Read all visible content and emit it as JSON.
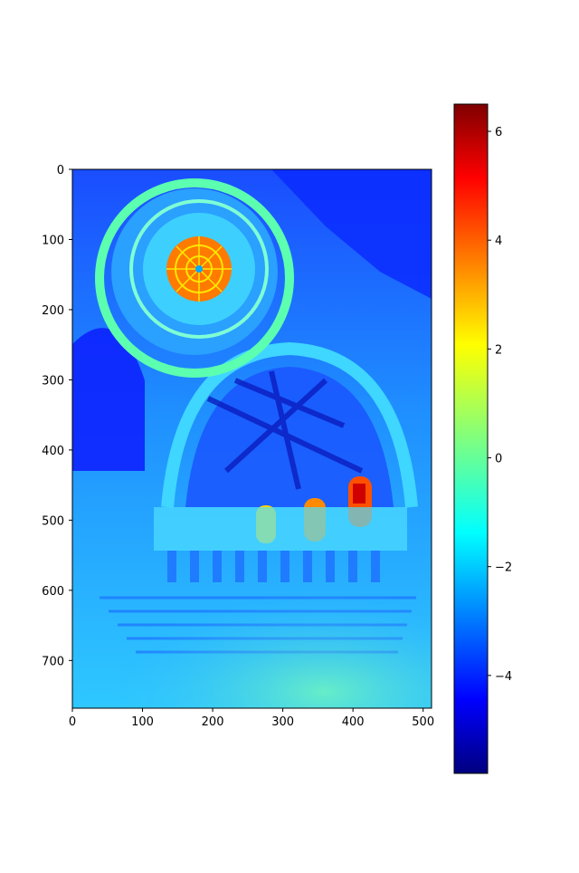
{
  "image": {
    "description_colormap": "jet",
    "x_ticks": [
      "0",
      "100",
      "200",
      "300",
      "400",
      "500"
    ],
    "y_ticks": [
      "0",
      "100",
      "200",
      "300",
      "400",
      "500",
      "600",
      "700"
    ]
  },
  "colorbar": {
    "ticks": [
      "6",
      "4",
      "2",
      "0",
      "−2",
      "−4"
    ],
    "range": [
      -5.8,
      6.5
    ],
    "tick_values": [
      6,
      4,
      2,
      0,
      -2,
      -4
    ]
  },
  "colors": {
    "deep_blue": "#00008f",
    "blue": "#0000ff",
    "cyan": "#00ffff",
    "yellow": "#ffff00",
    "red": "#ff0000",
    "dark_red": "#800000"
  }
}
